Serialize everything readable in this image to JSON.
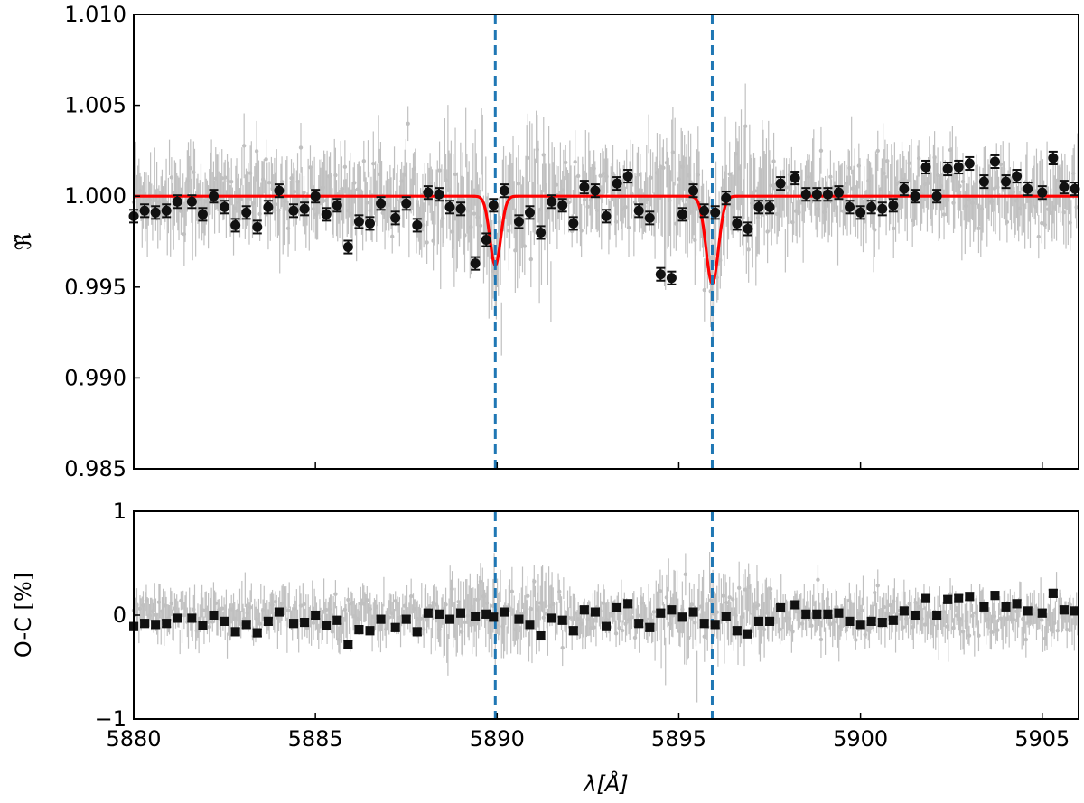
{
  "chart_data": [
    {
      "type": "scatter",
      "panel": "top",
      "title": "",
      "xlabel": "",
      "ylabel": "ℜ̃",
      "xlim": [
        5880,
        5906
      ],
      "ylim": [
        0.985,
        1.01
      ],
      "yticks": [
        0.985,
        0.99,
        0.995,
        1.0,
        1.005,
        1.01
      ],
      "ytick_labels": [
        "0.985",
        "0.990",
        "0.995",
        "1.000",
        "1.005",
        "1.010"
      ],
      "xticks": [
        5880,
        5885,
        5890,
        5895,
        5900,
        5905
      ],
      "xtick_labels": [
        "",
        "",
        "",
        "",
        "",
        ""
      ],
      "vlines": [
        5889.95,
        5895.92
      ],
      "colors": {
        "raw": "#c0c0c0",
        "binned": "#111111",
        "model": "#ff0000",
        "vline": "#1f77b4"
      },
      "raw_noise_sigma": 0.0015,
      "model": {
        "baseline": 1.0,
        "lines": [
          {
            "center": 5889.95,
            "depth": 0.0038,
            "sigma": 0.15
          },
          {
            "center": 5895.92,
            "depth": 0.0048,
            "sigma": 0.17
          }
        ]
      },
      "series": [
        {
          "kind": "binned",
          "err": 0.00035,
          "x": [
            5880.0,
            5880.3,
            5880.6,
            5880.9,
            5881.2,
            5881.6,
            5881.9,
            5882.2,
            5882.5,
            5882.8,
            5883.1,
            5883.4,
            5883.7,
            5884.0,
            5884.4,
            5884.7,
            5885.0,
            5885.3,
            5885.6,
            5885.9,
            5886.2,
            5886.5,
            5886.8,
            5887.2,
            5887.5,
            5887.8,
            5888.1,
            5888.4,
            5888.7,
            5889.0,
            5889.4,
            5889.7,
            5889.9,
            5890.2,
            5890.6,
            5890.9,
            5891.2,
            5891.5,
            5891.8,
            5892.1,
            5892.4,
            5892.7,
            5893.0,
            5893.3,
            5893.6,
            5893.9,
            5894.2,
            5894.5,
            5894.8,
            5895.1,
            5895.4,
            5895.7,
            5896.0,
            5896.3,
            5896.6,
            5896.9,
            5897.2,
            5897.5,
            5897.8,
            5898.2,
            5898.5,
            5898.8,
            5899.1,
            5899.4,
            5899.7,
            5900.0,
            5900.3,
            5900.6,
            5900.9,
            5901.2,
            5901.5,
            5901.8,
            5902.1,
            5902.4,
            5902.7,
            5903.0,
            5903.4,
            5903.7,
            5904.0,
            5904.3,
            5904.6,
            5905.0,
            5905.3,
            5905.6,
            5905.9
          ],
          "y": [
            0.9989,
            0.9992,
            0.9991,
            0.9992,
            0.9997,
            0.9997,
            0.999,
            1.0,
            0.9994,
            0.9984,
            0.9991,
            0.9983,
            0.9994,
            1.0003,
            0.9992,
            0.9993,
            1.0,
            0.999,
            0.9995,
            0.9972,
            0.9986,
            0.9985,
            0.9996,
            0.9988,
            0.9996,
            0.9984,
            1.0002,
            1.0001,
            0.9994,
            0.9993,
            0.9963,
            0.9976,
            0.9995,
            1.0003,
            0.9986,
            0.9991,
            0.998,
            0.9997,
            0.9995,
            0.9985,
            1.0005,
            1.0003,
            0.9989,
            1.0007,
            1.0011,
            0.9992,
            0.9988,
            0.9957,
            0.9955,
            0.999,
            1.0003,
            0.9992,
            0.9991,
            0.9999,
            0.9985,
            0.9982,
            0.9994,
            0.9994,
            1.0007,
            1.001,
            1.0001,
            1.0001,
            1.0001,
            1.0002,
            0.9994,
            0.9991,
            0.9994,
            0.9993,
            0.9995,
            1.0004,
            1.0,
            1.0016,
            1.0,
            1.0015,
            1.0016,
            1.0018,
            1.0008,
            1.0019,
            1.0008,
            1.0011,
            1.0004,
            1.0002,
            1.0021,
            1.0005,
            1.0004
          ]
        }
      ]
    },
    {
      "type": "scatter",
      "panel": "bottom",
      "title": "",
      "xlabel": "λ[Å]",
      "ylabel": "O-C [%]",
      "xlim": [
        5880,
        5906
      ],
      "ylim": [
        -1,
        1
      ],
      "yticks": [
        -1,
        0,
        1
      ],
      "ytick_labels": [
        "−1",
        "0",
        "1"
      ],
      "xticks": [
        5880,
        5885,
        5890,
        5895,
        5900,
        5905
      ],
      "xtick_labels": [
        "5880",
        "5885",
        "5890",
        "5895",
        "5900",
        "5905"
      ],
      "vlines": [
        5889.95,
        5895.92
      ],
      "raw_noise_sigma": 0.15,
      "series": [
        {
          "kind": "binned",
          "err": 0.035,
          "x": [
            5880.0,
            5880.3,
            5880.6,
            5880.9,
            5881.2,
            5881.6,
            5881.9,
            5882.2,
            5882.5,
            5882.8,
            5883.1,
            5883.4,
            5883.7,
            5884.0,
            5884.4,
            5884.7,
            5885.0,
            5885.3,
            5885.6,
            5885.9,
            5886.2,
            5886.5,
            5886.8,
            5887.2,
            5887.5,
            5887.8,
            5888.1,
            5888.4,
            5888.7,
            5889.0,
            5889.4,
            5889.7,
            5889.9,
            5890.2,
            5890.6,
            5890.9,
            5891.2,
            5891.5,
            5891.8,
            5892.1,
            5892.4,
            5892.7,
            5893.0,
            5893.3,
            5893.6,
            5893.9,
            5894.2,
            5894.5,
            5894.8,
            5895.1,
            5895.4,
            5895.7,
            5896.0,
            5896.3,
            5896.6,
            5896.9,
            5897.2,
            5897.5,
            5897.8,
            5898.2,
            5898.5,
            5898.8,
            5899.1,
            5899.4,
            5899.7,
            5900.0,
            5900.3,
            5900.6,
            5900.9,
            5901.2,
            5901.5,
            5901.8,
            5902.1,
            5902.4,
            5902.7,
            5903.0,
            5903.4,
            5903.7,
            5904.0,
            5904.3,
            5904.6,
            5905.0,
            5905.3,
            5905.6,
            5905.9
          ],
          "y": [
            -0.11,
            -0.08,
            -0.09,
            -0.08,
            -0.03,
            -0.03,
            -0.1,
            0.0,
            -0.06,
            -0.16,
            -0.09,
            -0.17,
            -0.06,
            0.03,
            -0.08,
            -0.07,
            0.0,
            -0.1,
            -0.05,
            -0.28,
            -0.14,
            -0.15,
            -0.04,
            -0.12,
            -0.04,
            -0.16,
            0.02,
            0.01,
            -0.04,
            0.02,
            -0.01,
            0.01,
            -0.02,
            0.03,
            -0.04,
            -0.09,
            -0.2,
            -0.03,
            -0.05,
            -0.15,
            0.05,
            0.03,
            -0.11,
            0.07,
            0.11,
            -0.08,
            -0.12,
            0.02,
            0.05,
            -0.02,
            0.03,
            -0.08,
            -0.09,
            -0.01,
            -0.15,
            -0.18,
            -0.06,
            -0.06,
            0.07,
            0.1,
            0.01,
            0.01,
            0.01,
            0.02,
            -0.06,
            -0.09,
            -0.06,
            -0.07,
            -0.05,
            0.04,
            0.0,
            0.16,
            0.0,
            0.15,
            0.16,
            0.18,
            0.08,
            0.19,
            0.08,
            0.11,
            0.04,
            0.02,
            0.21,
            0.05,
            0.04
          ]
        }
      ]
    }
  ]
}
